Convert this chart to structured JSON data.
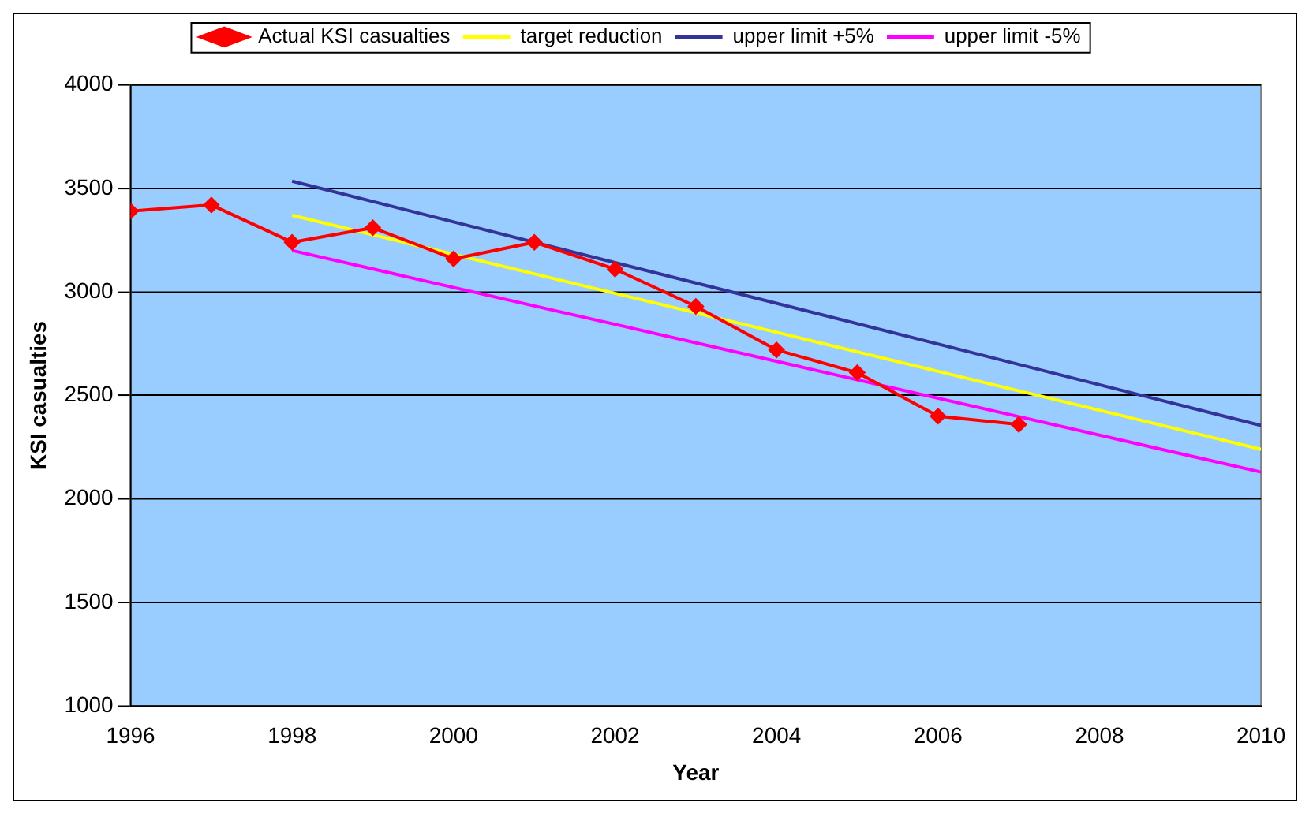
{
  "chart_data": {
    "type": "line",
    "xlabel": "Year",
    "ylabel": "KSI casualties",
    "xlim": [
      1996,
      2010
    ],
    "xticks": [
      1996,
      1998,
      2000,
      2002,
      2004,
      2006,
      2008,
      2010
    ],
    "ylim": [
      1000,
      4000
    ],
    "yticks": [
      1000,
      1500,
      2000,
      2500,
      3000,
      3500,
      4000
    ],
    "grid": "y",
    "legend": "top",
    "series": [
      {
        "name": "Actual KSI casualties",
        "color": "#ff0000",
        "marker": "diamond",
        "x": [
          1996,
          1997,
          1998,
          1999,
          2000,
          2001,
          2002,
          2003,
          2004,
          2005,
          2006,
          2007
        ],
        "values": [
          3390,
          3420,
          3240,
          3310,
          3160,
          3240,
          3110,
          2930,
          2720,
          2610,
          2400,
          2360
        ]
      },
      {
        "name": "target reduction",
        "color": "#ffff00",
        "marker": "none",
        "x": [
          1998,
          2010
        ],
        "values": [
          3370,
          2240
        ]
      },
      {
        "name": "upper limit +5%",
        "color": "#333399",
        "marker": "none",
        "x": [
          1998,
          2010
        ],
        "values": [
          3535,
          2355
        ]
      },
      {
        "name": "upper limit -5%",
        "color": "#ff00ff",
        "marker": "none",
        "x": [
          1998,
          2010
        ],
        "values": [
          3200,
          2130
        ]
      }
    ]
  }
}
